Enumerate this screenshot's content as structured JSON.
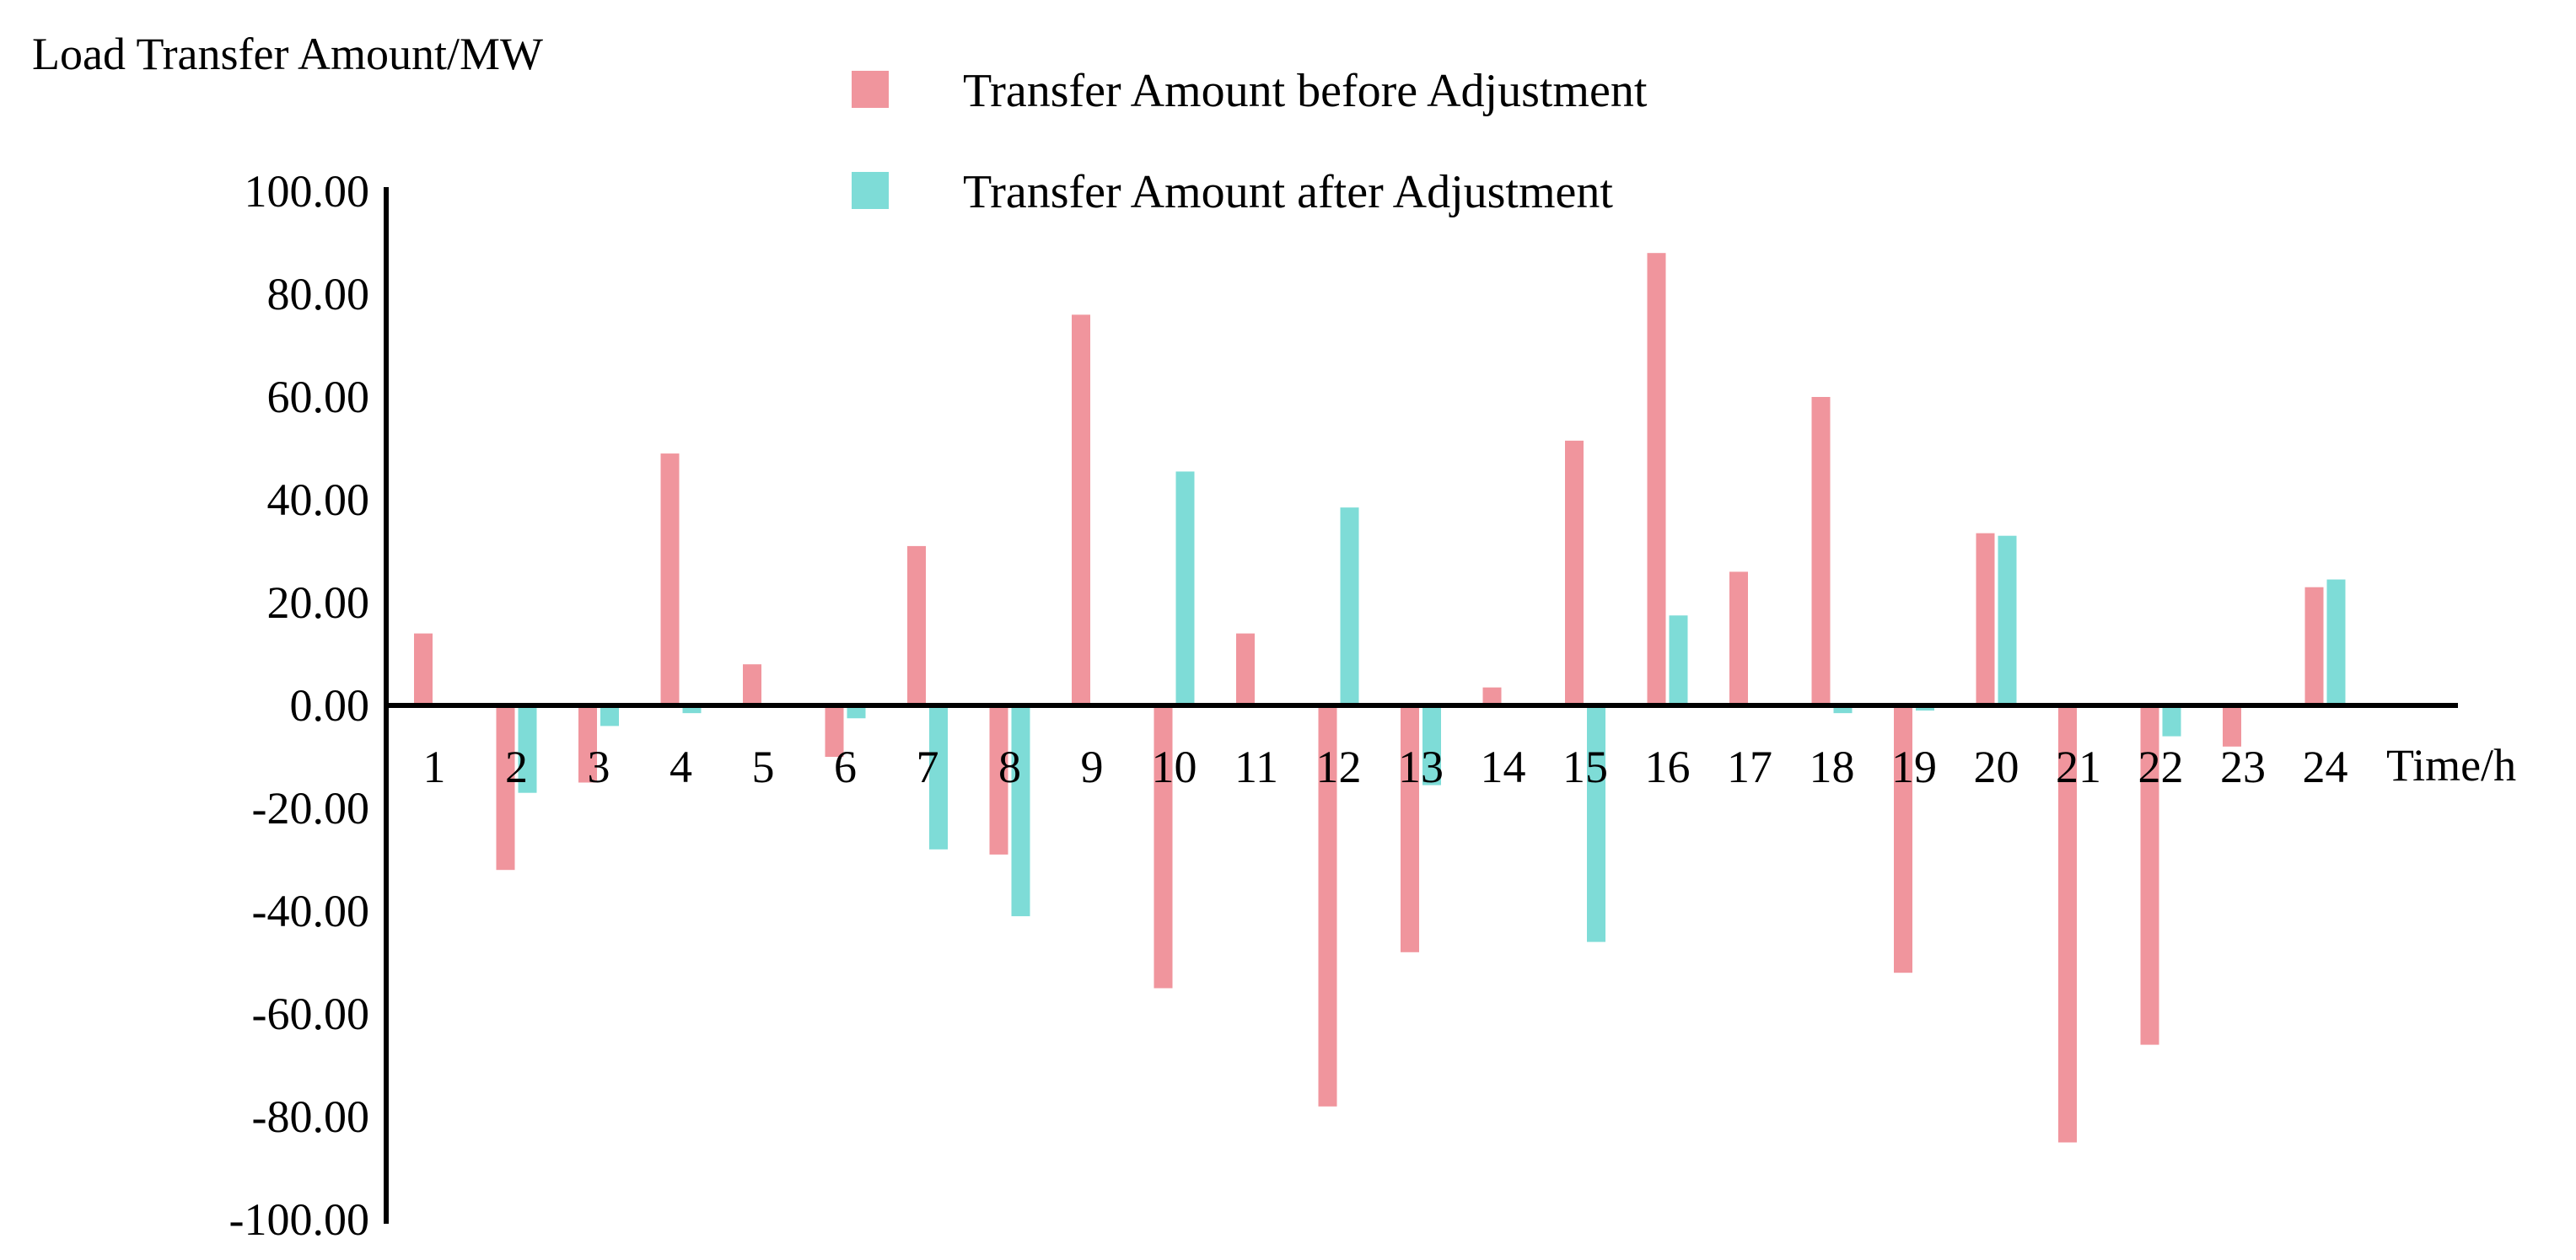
{
  "chart_data": {
    "type": "bar",
    "title": "",
    "ylabel": "Load Transfer Amount/MW",
    "xlabel": "Time/h",
    "ylim": [
      -100,
      100
    ],
    "yticks": [
      100,
      80,
      60,
      40,
      20,
      0,
      -20,
      -40,
      -60,
      -80,
      -100
    ],
    "ytick_labels": [
      "100.00",
      "80.00",
      "60.00",
      "40.00",
      "20.00",
      "0.00",
      "-20.00",
      "-40.00",
      "-60.00",
      "-80.00",
      "-100.00"
    ],
    "categories": [
      "1",
      "2",
      "3",
      "4",
      "5",
      "6",
      "7",
      "8",
      "9",
      "10",
      "11",
      "12",
      "13",
      "14",
      "15",
      "16",
      "17",
      "18",
      "19",
      "20",
      "21",
      "22",
      "23",
      "24"
    ],
    "legend_position": "top-center",
    "grid": false,
    "series": [
      {
        "name": "Transfer Amount before Adjustment",
        "color": "#f0959d",
        "values": [
          14,
          -32,
          -15,
          49,
          8,
          -10,
          31,
          -29,
          76,
          -55,
          14,
          -78,
          -48,
          3.5,
          51.5,
          88,
          26,
          60,
          -52,
          33.5,
          -85,
          -66,
          -8,
          23
        ]
      },
      {
        "name": "Transfer Amount after Adjustment",
        "color": "#7edcd7",
        "values": [
          0,
          -17,
          -4,
          -1.5,
          0,
          -2.5,
          -28,
          -41,
          0,
          45.5,
          0,
          38.5,
          -15.5,
          0,
          -46,
          17.5,
          0,
          -1.5,
          -1,
          33,
          0,
          -6,
          0,
          24.5
        ]
      }
    ]
  }
}
